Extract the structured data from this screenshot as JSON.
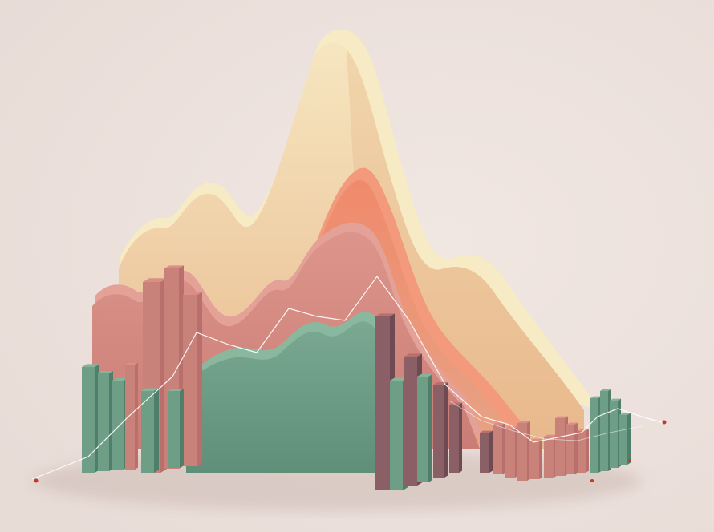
{
  "scene": {
    "subject": "3d-abstract-mountain-chart",
    "colors": {
      "background": "#e8dcd7",
      "background_light": "#f1e7e2",
      "cream_front": "#f2d9b0",
      "cream_top": "#f8ecc8",
      "cream_side": "#e6bf93",
      "coral": "#f08a6c",
      "coral_dark": "#d86f58",
      "rose": "#d98f86",
      "rose_dark": "#b9706c",
      "green": "#6f9e86",
      "green_dark": "#4f7e6a",
      "green_light": "#86b39a",
      "bar_rose": "#c8827a",
      "bar_plum": "#8b5f66",
      "line": "#ffffff",
      "dot": "#c0392b",
      "shadow": "#cbb9b3"
    }
  }
}
